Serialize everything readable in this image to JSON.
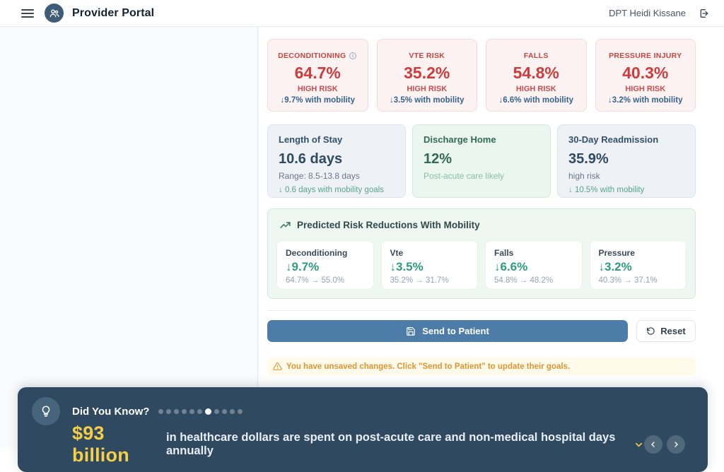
{
  "header": {
    "app_title": "Provider Portal",
    "user_name": "DPT Heidi Kissane"
  },
  "risk_cards": [
    {
      "label": "DECONDITIONING",
      "value": "64.7%",
      "risk": "HIGH RISK",
      "mobility": "↓9.7% with mobility"
    },
    {
      "label": "VTE RISK",
      "value": "35.2%",
      "risk": "HIGH RISK",
      "mobility": "↓3.5% with mobility"
    },
    {
      "label": "FALLS",
      "value": "54.8%",
      "risk": "HIGH RISK",
      "mobility": "↓6.6% with mobility"
    },
    {
      "label": "PRESSURE INJURY",
      "value": "40.3%",
      "risk": "HIGH RISK",
      "mobility": "↓3.2% with mobility"
    }
  ],
  "stat_cards": [
    {
      "title": "Length of Stay",
      "value": "10.6 days",
      "subtitle": "Range: 8.5-13.8 days",
      "note": "↓ 0.6 days with mobility goals"
    },
    {
      "title": "Discharge Home",
      "value": "12%",
      "subtitle": "Post-acute care likely",
      "note": ""
    },
    {
      "title": "30-Day Readmission",
      "value": "35.9%",
      "subtitle": "high risk",
      "note": "↓ 10.5% with mobility"
    }
  ],
  "reductions_panel": {
    "title": "Predicted Risk Reductions With Mobility",
    "items": [
      {
        "label": "Deconditioning",
        "delta": "↓9.7%",
        "change": "64.7% → 55.0%"
      },
      {
        "label": "Vte",
        "delta": "↓3.5%",
        "change": "35.2% → 31.7%"
      },
      {
        "label": "Falls",
        "delta": "↓6.6%",
        "change": "54.8% → 48.2%"
      },
      {
        "label": "Pressure",
        "delta": "↓3.2%",
        "change": "40.3% → 37.1%"
      }
    ]
  },
  "actions": {
    "send_label": "Send to Patient",
    "reset_label": "Reset"
  },
  "warning": {
    "text": "You have unsaved changes. Click \"Send to Patient\" to update their goals."
  },
  "banner": {
    "title": "Did You Know?",
    "dots_total": 11,
    "dots_active_index": 6,
    "highlight": "$93 billion",
    "text": "in healthcare dollars are spent on post-acute care and non-medical hospital days annually"
  },
  "colors": {
    "risk_red": "#CE3B3B",
    "mobility_blue": "#34648F",
    "reduction_green": "#2E9C7C",
    "primary_button_blue": "#4D7CA8",
    "warning_orange": "#DE9333",
    "banner_navy": "#2E4960",
    "banner_yellow": "#F7CE46",
    "logo_slate": "#3E5C76"
  }
}
